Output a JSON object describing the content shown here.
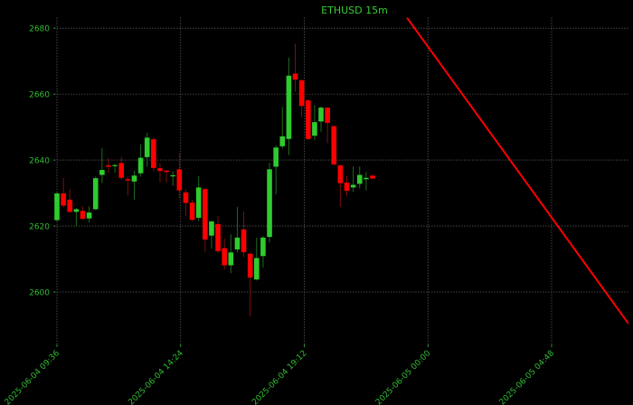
{
  "chart_data": {
    "type": "candlestick",
    "title": "ETHUSD 15m",
    "xlabel": "",
    "ylabel": "",
    "xlim": [
      "2025-06-04 09:36",
      "2025-06-05 07:47"
    ],
    "ylim": [
      2584.1,
      2683.2
    ],
    "grid": true,
    "colors": {
      "background": "#000000",
      "up": "#2ecc2e",
      "down": "#ff0000",
      "text": "#33bb33",
      "grid": "#555555",
      "trendline": "#ff0000"
    },
    "x_ticks": [
      {
        "value": "2025-06-04 09:36",
        "label": "2025-06-04 09:36"
      },
      {
        "value": "2025-06-04 14:24",
        "label": "2025-06-04 14:24"
      },
      {
        "value": "2025-06-04 19:12",
        "label": "2025-06-04 19:12"
      },
      {
        "value": "2025-06-05 00:00",
        "label": "2025-06-05 00:00"
      },
      {
        "value": "2025-06-05 04:48",
        "label": "2025-06-05 04:48"
      }
    ],
    "y_ticks": [
      2600,
      2620,
      2640,
      2660,
      2680
    ],
    "candles_columns": [
      "time",
      "open",
      "high",
      "low",
      "close"
    ],
    "candles": [
      [
        "2025-06-04 09:36",
        2621.8,
        2630.2,
        2621.5,
        2629.9
      ],
      [
        "2025-06-04 09:51",
        2629.9,
        2634.6,
        2625.7,
        2626.2
      ],
      [
        "2025-06-04 10:06",
        2628.0,
        2631.2,
        2624.0,
        2624.3
      ],
      [
        "2025-06-04 10:21",
        2624.3,
        2625.5,
        2620.0,
        2625.1
      ],
      [
        "2025-06-04 10:36",
        2624.6,
        2626.0,
        2622.0,
        2622.2
      ],
      [
        "2025-06-04 10:51",
        2622.3,
        2626.0,
        2621.0,
        2624.1
      ],
      [
        "2025-06-04 11:06",
        2625.1,
        2635.0,
        2624.8,
        2634.5
      ],
      [
        "2025-06-04 11:21",
        2635.5,
        2643.6,
        2633.0,
        2637.0
      ],
      [
        "2025-06-04 11:36",
        2638.4,
        2640.6,
        2636.2,
        2638.0
      ],
      [
        "2025-06-04 11:51",
        2638.3,
        2638.8,
        2636.2,
        2638.5
      ],
      [
        "2025-06-04 12:06",
        2639.1,
        2641.0,
        2634.0,
        2634.6
      ],
      [
        "2025-06-04 12:21",
        2634.2,
        2635.0,
        2629.3,
        2633.8
      ],
      [
        "2025-06-04 12:36",
        2633.5,
        2636.8,
        2628.0,
        2635.3
      ],
      [
        "2025-06-04 12:51",
        2636.0,
        2644.8,
        2635.0,
        2640.7
      ],
      [
        "2025-06-04 13:06",
        2640.9,
        2648.3,
        2638.0,
        2646.8
      ],
      [
        "2025-06-04 13:21",
        2646.3,
        2647.0,
        2636.6,
        2637.6
      ],
      [
        "2025-06-04 13:36",
        2637.5,
        2639.0,
        2633.2,
        2636.7
      ],
      [
        "2025-06-04 13:51",
        2636.8,
        2637.0,
        2633.2,
        2636.4
      ],
      [
        "2025-06-04 14:06",
        2635.2,
        2636.6,
        2632.2,
        2635.4
      ],
      [
        "2025-06-04 14:21",
        2637.2,
        2642.1,
        2628.4,
        2630.8
      ],
      [
        "2025-06-04 14:36",
        2630.2,
        2631.0,
        2623.0,
        2627.0
      ],
      [
        "2025-06-04 14:51",
        2627.1,
        2628.0,
        2621.5,
        2621.9
      ],
      [
        "2025-06-04 15:06",
        2622.5,
        2635.1,
        2621.6,
        2631.7
      ],
      [
        "2025-06-04 15:21",
        2631.2,
        2631.5,
        2612.2,
        2615.9
      ],
      [
        "2025-06-04 15:36",
        2617.1,
        2621.6,
        2613.2,
        2621.4
      ],
      [
        "2025-06-04 15:51",
        2620.6,
        2623.0,
        2611.8,
        2612.4
      ],
      [
        "2025-06-04 16:06",
        2613.3,
        2616.2,
        2606.8,
        2608.1
      ],
      [
        "2025-06-04 16:21",
        2608.1,
        2617.5,
        2605.7,
        2612.0
      ],
      [
        "2025-06-04 16:36",
        2612.9,
        2625.8,
        2612.0,
        2616.5
      ],
      [
        "2025-06-04 16:51",
        2619.0,
        2624.4,
        2610.6,
        2612.1
      ],
      [
        "2025-06-04 17:06",
        2611.6,
        2612.0,
        2592.6,
        2604.4
      ],
      [
        "2025-06-04 17:21",
        2603.8,
        2616.5,
        2603.5,
        2610.3
      ],
      [
        "2025-06-04 17:36",
        2610.9,
        2617.0,
        2607.4,
        2616.5
      ],
      [
        "2025-06-04 17:51",
        2616.7,
        2639.2,
        2615.0,
        2637.2
      ],
      [
        "2025-06-04 18:06",
        2638.0,
        2644.5,
        2629.6,
        2643.8
      ],
      [
        "2025-06-04 18:21",
        2644.2,
        2656.1,
        2643.5,
        2647.2
      ],
      [
        "2025-06-04 18:36",
        2646.4,
        2671.1,
        2641.5,
        2665.6
      ],
      [
        "2025-06-04 18:51",
        2666.2,
        2675.3,
        2660.8,
        2664.4
      ],
      [
        "2025-06-04 19:06",
        2664.2,
        2664.5,
        2653.1,
        2656.4
      ],
      [
        "2025-06-04 19:21",
        2658.1,
        2658.5,
        2646.0,
        2646.4
      ],
      [
        "2025-06-04 19:36",
        2647.4,
        2656.7,
        2646.0,
        2651.5
      ],
      [
        "2025-06-04 19:51",
        2651.7,
        2656.2,
        2648.5,
        2655.9
      ],
      [
        "2025-06-04 20:06",
        2655.9,
        2656.0,
        2645.1,
        2651.3
      ],
      [
        "2025-06-04 20:21",
        2650.3,
        2650.5,
        2638.5,
        2638.7
      ],
      [
        "2025-06-04 20:36",
        2638.4,
        2638.6,
        2625.8,
        2633.0
      ],
      [
        "2025-06-04 20:51",
        2633.2,
        2635.3,
        2629.0,
        2630.7
      ],
      [
        "2025-06-04 21:06",
        2631.7,
        2638.1,
        2630.3,
        2632.5
      ],
      [
        "2025-06-04 21:21",
        2632.8,
        2638.1,
        2631.4,
        2635.5
      ],
      [
        "2025-06-04 21:36",
        2634.2,
        2636.4,
        2630.8,
        2634.6
      ],
      [
        "2025-06-04 21:51",
        2635.3,
        2635.5,
        2634.3,
        2634.4
      ]
    ],
    "trendline": [
      [
        "2025-06-04 23:11",
        2683.2
      ],
      [
        "2025-06-05 07:47",
        2590.4
      ]
    ]
  }
}
